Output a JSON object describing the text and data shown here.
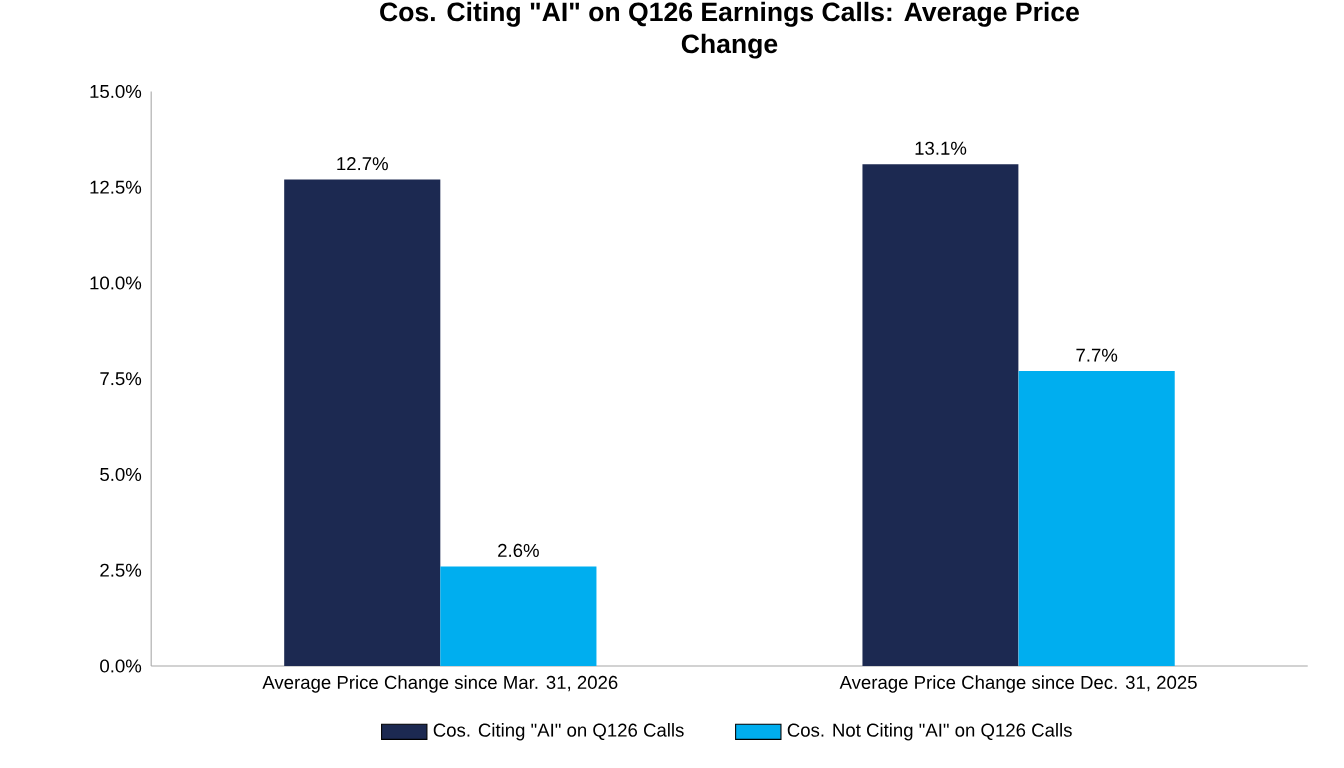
{
  "chart_data": {
    "type": "bar",
    "title": "Cos. Citing \"AI\" on Q126 Earnings Calls: Average Price Change",
    "categories": [
      "Average Price Change since Mar. 31, 2026",
      "Average Price Change since Dec. 31, 2025"
    ],
    "series": [
      {
        "name": "Cos. Citing \"AI\" on Q126 Calls",
        "color": "#1c2951",
        "values": [
          12.7,
          13.1
        ],
        "value_labels": [
          "12.7%",
          "13.1%"
        ]
      },
      {
        "name": "Cos. Not Citing \"AI\" on Q126 Calls",
        "color": "#00aeef",
        "values": [
          2.6,
          7.7
        ],
        "value_labels": [
          "2.6%",
          "7.7%"
        ]
      }
    ],
    "ylim": [
      0,
      15
    ],
    "yticks": [
      {
        "value": 0,
        "label": "0.0%"
      },
      {
        "value": 2.5,
        "label": "2.5%"
      },
      {
        "value": 5,
        "label": "5.0%"
      },
      {
        "value": 7.5,
        "label": "7.5%"
      },
      {
        "value": 10,
        "label": "10.0%"
      },
      {
        "value": 12.5,
        "label": "12.5%"
      },
      {
        "value": 15,
        "label": "15.0%"
      }
    ],
    "grid": false,
    "legend": "bottom"
  }
}
